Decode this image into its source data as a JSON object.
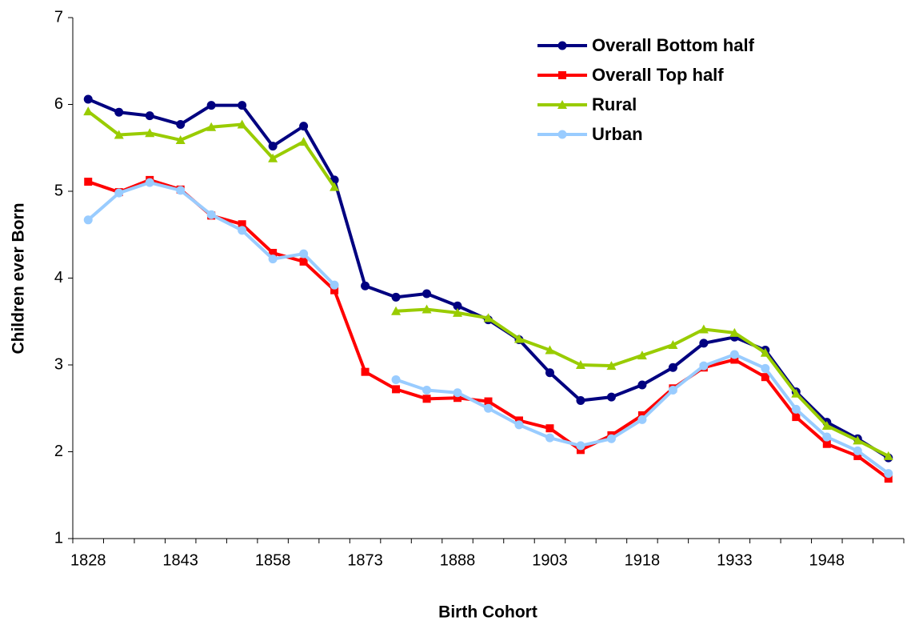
{
  "chart_data": {
    "type": "line",
    "x_label": "Birth Cohort",
    "y_label": "Children ever Born",
    "categories": [
      "1828",
      null,
      null,
      "1843",
      null,
      null,
      "1858",
      null,
      null,
      "1873",
      null,
      null,
      "1888",
      null,
      null,
      "1903",
      null,
      null,
      "1918",
      null,
      null,
      "1933",
      null,
      null,
      "1948",
      null,
      null
    ],
    "ylim": [
      1,
      7
    ],
    "yticks": [
      1,
      2,
      3,
      4,
      5,
      6,
      7
    ],
    "legend": "upper right",
    "series": [
      {
        "name": "Overall Bottom half",
        "color": "#000080",
        "marker": "circle",
        "values": [
          6.06,
          5.91,
          5.87,
          5.77,
          5.99,
          5.99,
          5.52,
          5.75,
          5.13,
          3.91,
          3.78,
          3.82,
          3.68,
          3.52,
          3.29,
          2.91,
          2.59,
          2.63,
          2.77,
          2.97,
          3.25,
          3.32,
          3.17,
          2.69,
          2.34,
          2.15,
          1.93
        ]
      },
      {
        "name": "Overall Top half",
        "color": "#ff0000",
        "marker": "square",
        "values": [
          5.11,
          4.99,
          5.13,
          5.02,
          4.72,
          4.62,
          4.29,
          4.19,
          3.86,
          2.92,
          2.72,
          2.61,
          2.62,
          2.58,
          2.36,
          2.27,
          2.02,
          2.19,
          2.42,
          2.73,
          2.97,
          3.06,
          2.86,
          2.4,
          2.09,
          1.95,
          1.69
        ]
      },
      {
        "name": "Rural",
        "color": "#99cc00",
        "marker": "triangle",
        "values": [
          5.92,
          5.65,
          5.67,
          5.59,
          5.74,
          5.77,
          5.38,
          5.57,
          5.05,
          null,
          3.62,
          3.64,
          3.6,
          3.54,
          3.3,
          3.17,
          3.0,
          2.99,
          3.11,
          3.23,
          3.41,
          3.37,
          3.14,
          2.67,
          2.3,
          2.13,
          1.95
        ]
      },
      {
        "name": "Urban",
        "color": "#99ccff",
        "marker": "circle",
        "values": [
          4.67,
          4.98,
          5.1,
          5.01,
          4.73,
          4.55,
          4.22,
          4.28,
          3.92,
          null,
          2.83,
          2.71,
          2.68,
          2.5,
          2.31,
          2.16,
          2.07,
          2.15,
          2.37,
          2.71,
          2.99,
          3.12,
          2.96,
          2.49,
          2.17,
          2.01,
          1.75
        ]
      }
    ]
  }
}
